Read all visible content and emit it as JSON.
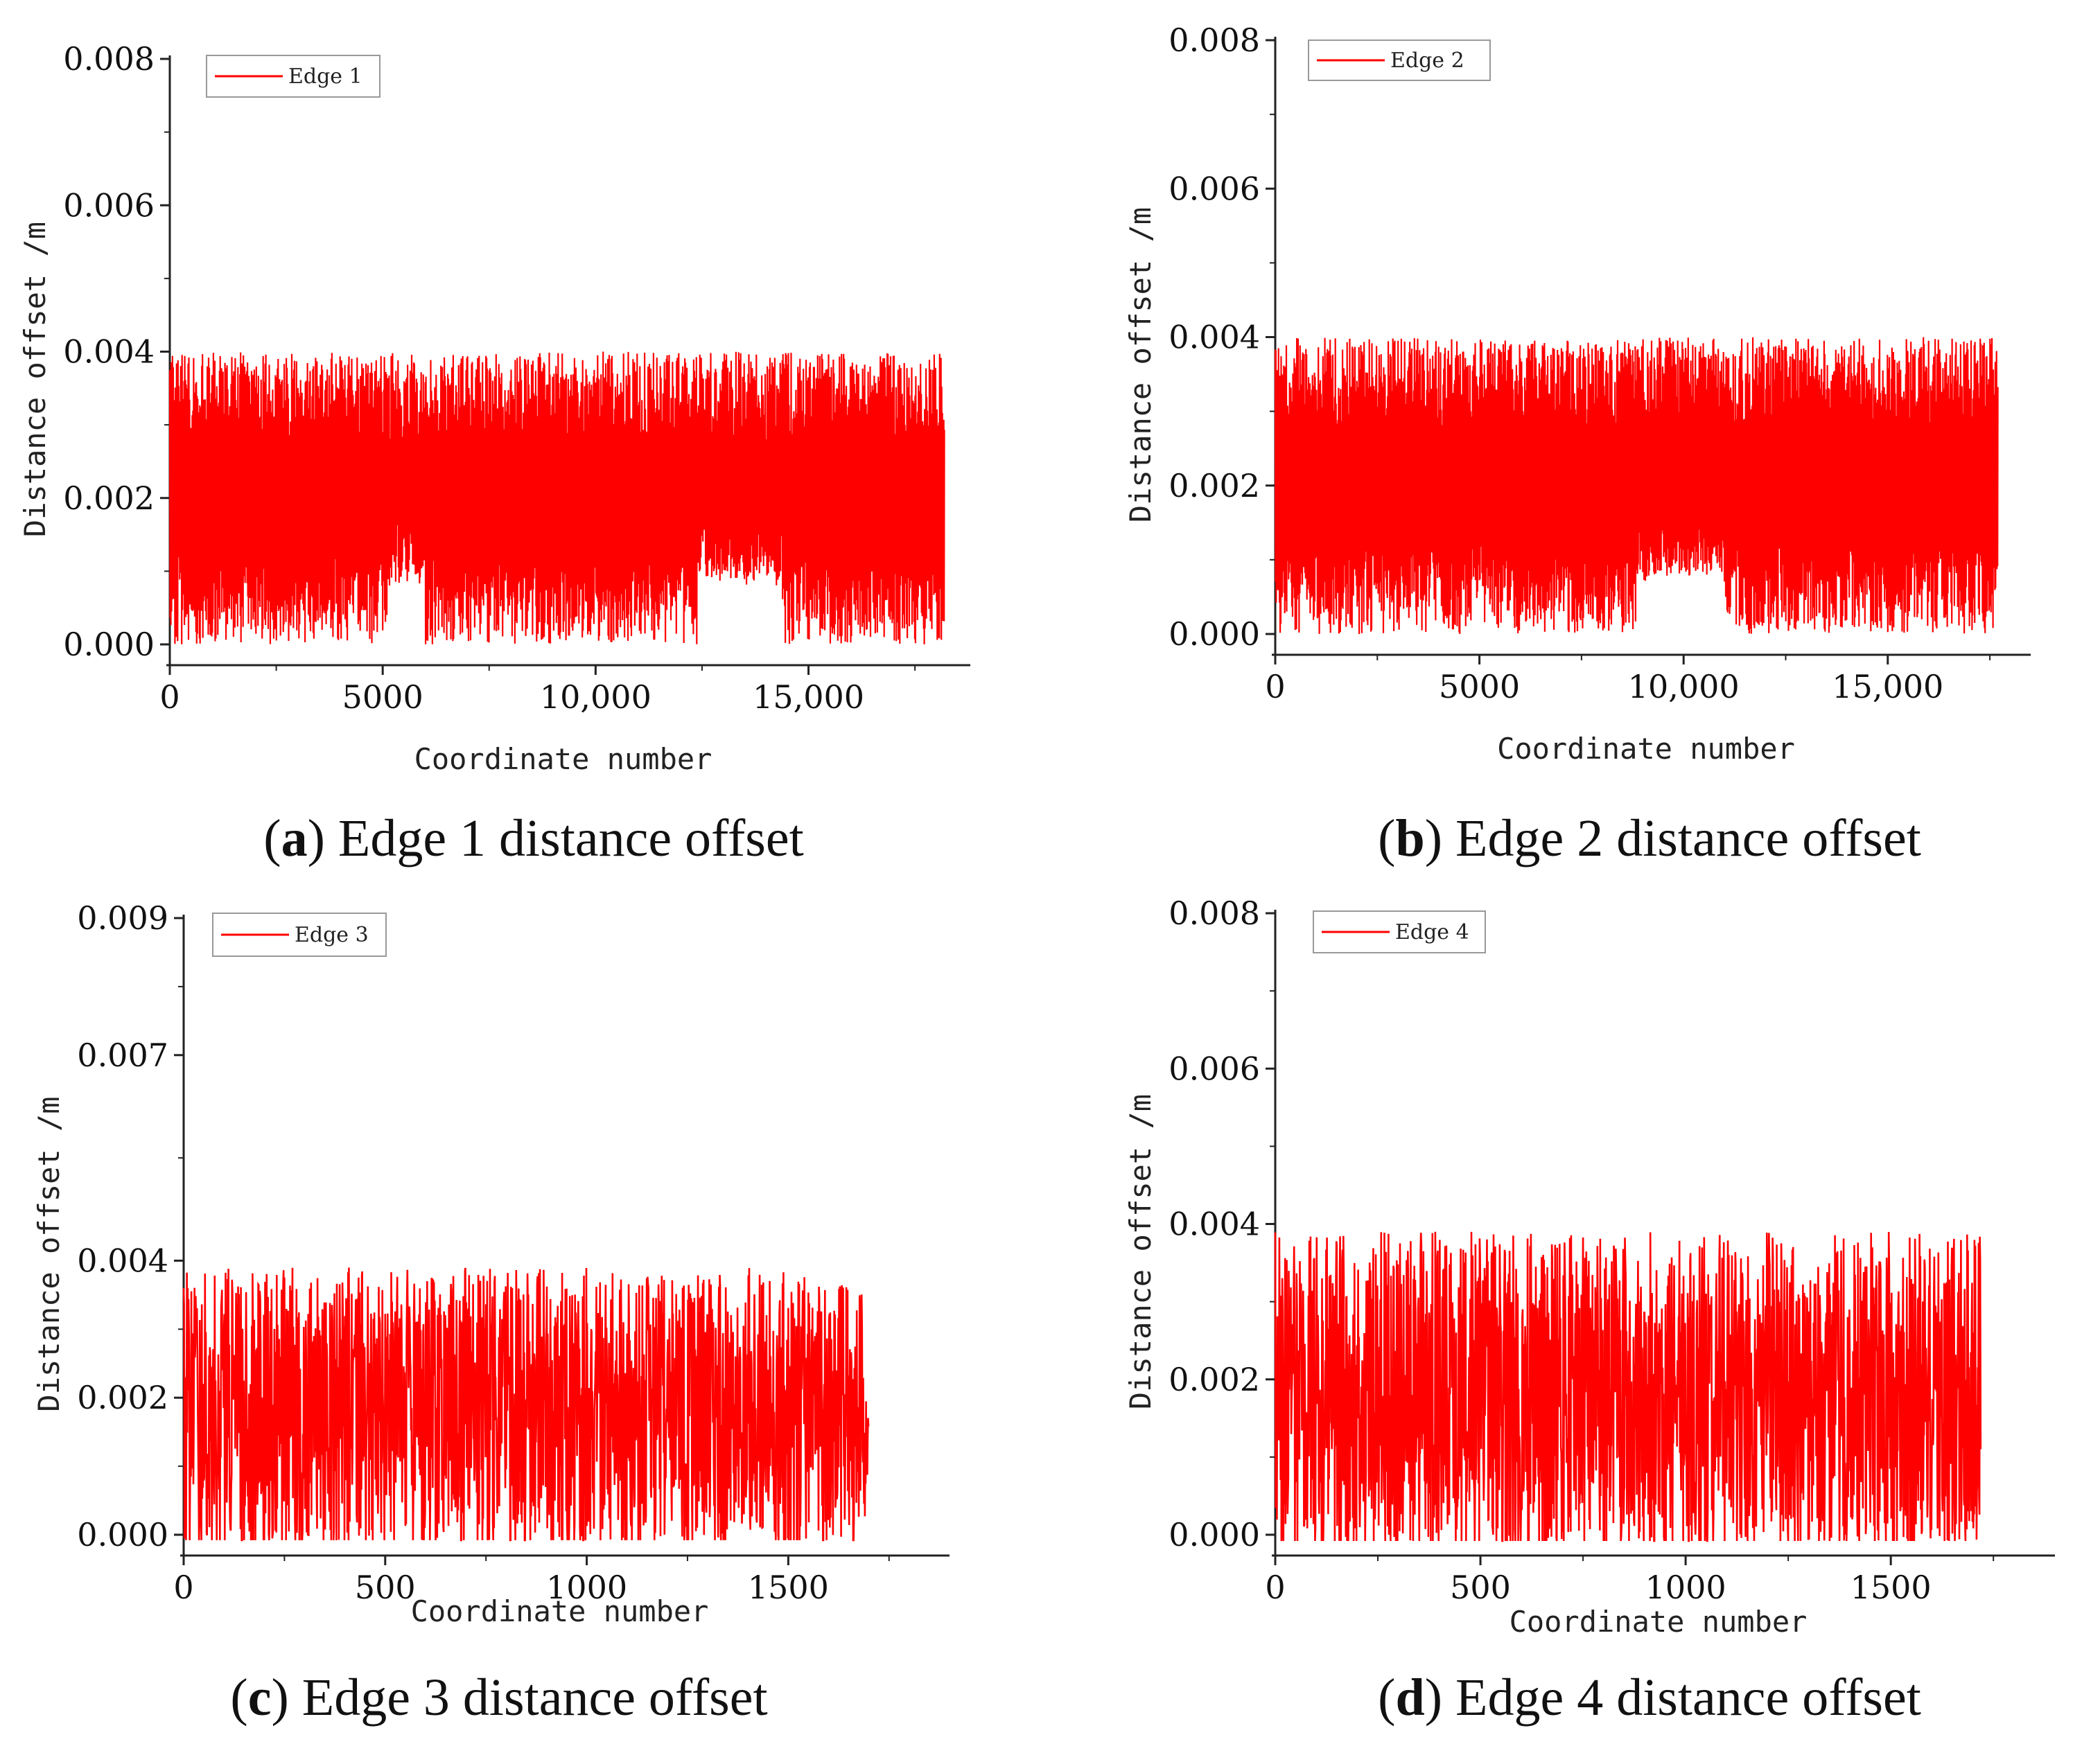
{
  "chart_data": [
    {
      "id": "a",
      "type": "line",
      "caption": {
        "letter": "a",
        "text": " Edge 1 distance offset"
      },
      "legend": "Edge 1",
      "xlabel": "Coordinate number",
      "ylabel": "Distance offset /m",
      "xlim": [
        0,
        18800
      ],
      "ylim": [
        0,
        0.008
      ],
      "xticks": [
        0,
        5000,
        10000,
        15000
      ],
      "xtick_labels": [
        "0",
        "5000",
        "10,000",
        "15,000"
      ],
      "yticks": [
        0,
        0.002,
        0.004,
        0.006,
        0.008
      ],
      "ytick_labels": [
        "0.000",
        "0.002",
        "0.004",
        "0.006",
        "0.008"
      ],
      "color": "#ff0000",
      "series": [
        {
          "name": "Edge 1",
          "n_points": 18200,
          "range": [
            0.0,
            0.004
          ]
        }
      ]
    },
    {
      "id": "b",
      "type": "line",
      "caption": {
        "letter": "b",
        "text": " Edge 2 distance offset"
      },
      "legend": "Edge 2",
      "xlabel": "Coordinate number",
      "ylabel": "Distance offset /m",
      "xlim": [
        0,
        18500
      ],
      "ylim": [
        0,
        0.008
      ],
      "xticks": [
        0,
        5000,
        10000,
        15000
      ],
      "xtick_labels": [
        "0",
        "5000",
        "10,000",
        "15,000"
      ],
      "yticks": [
        0,
        0.002,
        0.004,
        0.006,
        0.008
      ],
      "ytick_labels": [
        "0.000",
        "0.002",
        "0.004",
        "0.006",
        "0.008"
      ],
      "color": "#ff0000",
      "series": [
        {
          "name": "Edge 2",
          "n_points": 17700,
          "range": [
            0.0,
            0.004
          ]
        }
      ]
    },
    {
      "id": "c",
      "type": "line",
      "caption": {
        "letter": "c",
        "text": " Edge 3 distance offset"
      },
      "legend": "Edge 3",
      "xlabel": "Coordinate number",
      "ylabel": "Distance offset /m",
      "xlim": [
        0,
        1900
      ],
      "ylim": [
        0,
        0.009
      ],
      "xticks": [
        0,
        500,
        1000,
        1500
      ],
      "xtick_labels": [
        "0",
        "500",
        "1000",
        "1500"
      ],
      "yticks": [
        0,
        0.002,
        0.004,
        0.007,
        0.009
      ],
      "ytick_labels": [
        "0.000",
        "0.002",
        "0.004",
        "0.007",
        "0.009"
      ],
      "color": "#ff0000",
      "series": [
        {
          "name": "Edge 3",
          "n_points": 1700,
          "range": [
            0.0,
            0.004
          ]
        }
      ]
    },
    {
      "id": "d",
      "type": "line",
      "caption": {
        "letter": "d",
        "text": " Edge 4 distance offset"
      },
      "legend": "Edge 4",
      "xlabel": "Coordinate number",
      "ylabel": "Distance offset /m",
      "xlim": [
        0,
        1900
      ],
      "ylim": [
        0,
        0.008
      ],
      "xticks": [
        0,
        500,
        1000,
        1500
      ],
      "xtick_labels": [
        "0",
        "500",
        "1000",
        "1500"
      ],
      "yticks": [
        0,
        0.002,
        0.004,
        0.006,
        0.008
      ],
      "ytick_labels": [
        "0.000",
        "0.002",
        "0.004",
        "0.006",
        "0.008"
      ],
      "color": "#ff0000",
      "series": [
        {
          "name": "Edge 4",
          "n_points": 1720,
          "range": [
            0.0,
            0.004
          ]
        }
      ]
    }
  ]
}
